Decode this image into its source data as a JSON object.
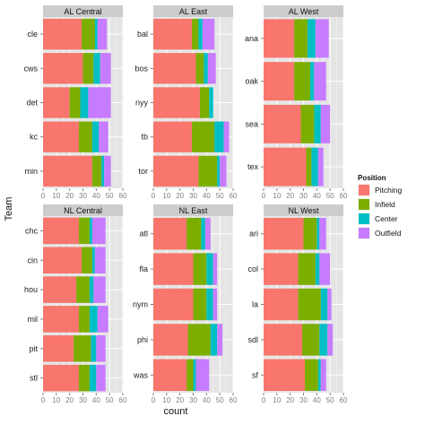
{
  "chart_data": {
    "type": "bar",
    "orientation": "horizontal",
    "stacked": true,
    "xlabel": "count",
    "ylabel": "Team",
    "xlim": [
      0,
      60
    ],
    "xticks": [
      "0",
      "10",
      "20",
      "30",
      "40",
      "50",
      "60"
    ],
    "grid": true,
    "legend": {
      "title": "Position",
      "placement": "right",
      "entries": [
        {
          "name": "Pitching",
          "color": "#F8766D"
        },
        {
          "name": "Infield",
          "color": "#7CAE00"
        },
        {
          "name": "Center",
          "color": "#00BFC4"
        },
        {
          "name": "Outfield",
          "color": "#C77CFF"
        }
      ]
    },
    "panels": [
      {
        "title": "AL Central",
        "teams": [
          {
            "name": "cle",
            "values": [
              29,
              10,
              2,
              7
            ]
          },
          {
            "name": "cws",
            "values": [
              30,
              8,
              5,
              8
            ]
          },
          {
            "name": "det",
            "values": [
              20,
              8,
              6,
              17
            ]
          },
          {
            "name": "kc",
            "values": [
              27,
              10,
              5,
              7
            ]
          },
          {
            "name": "min",
            "values": [
              37,
              7,
              2,
              5
            ]
          }
        ]
      },
      {
        "title": "AL East",
        "teams": [
          {
            "name": "bal",
            "values": [
              29,
              5,
              3,
              9
            ]
          },
          {
            "name": "bos",
            "values": [
              32,
              6,
              3,
              6
            ]
          },
          {
            "name": "nyy",
            "values": [
              35,
              7,
              3,
              0
            ]
          },
          {
            "name": "tb",
            "values": [
              29,
              17,
              7,
              4
            ]
          },
          {
            "name": "tor",
            "values": [
              34,
              14,
              2,
              5
            ]
          }
        ]
      },
      {
        "title": "AL West",
        "teams": [
          {
            "name": "ana",
            "values": [
              23,
              10,
              6,
              10
            ]
          },
          {
            "name": "oak",
            "values": [
              23,
              12,
              3,
              9
            ]
          },
          {
            "name": "sea",
            "values": [
              28,
              10,
              5,
              7
            ]
          },
          {
            "name": "tex",
            "values": [
              32,
              4,
              5,
              4
            ]
          }
        ]
      },
      {
        "title": "NL Central",
        "teams": [
          {
            "name": "chc",
            "values": [
              27,
              8,
              2,
              10
            ]
          },
          {
            "name": "cin",
            "values": [
              29,
              8,
              2,
              8
            ]
          },
          {
            "name": "hou",
            "values": [
              25,
              10,
              3,
              9
            ]
          },
          {
            "name": "mil",
            "values": [
              27,
              8,
              6,
              8
            ]
          },
          {
            "name": "pit",
            "values": [
              23,
              13,
              4,
              7
            ]
          },
          {
            "name": "stl",
            "values": [
              27,
              8,
              5,
              7
            ]
          }
        ]
      },
      {
        "title": "NL East",
        "teams": [
          {
            "name": "atl",
            "values": [
              25,
              11,
              3,
              4
            ]
          },
          {
            "name": "fla",
            "values": [
              30,
              10,
              5,
              3
            ]
          },
          {
            "name": "nym",
            "values": [
              30,
              10,
              5,
              3
            ]
          },
          {
            "name": "phi",
            "values": [
              26,
              17,
              5,
              4
            ]
          },
          {
            "name": "was",
            "values": [
              25,
              5,
              2,
              10
            ]
          }
        ]
      },
      {
        "title": "NL West",
        "teams": [
          {
            "name": "ari",
            "values": [
              30,
              10,
              2,
              5
            ]
          },
          {
            "name": "col",
            "values": [
              26,
              13,
              3,
              8
            ]
          },
          {
            "name": "la",
            "values": [
              26,
              17,
              5,
              3
            ]
          },
          {
            "name": "sdl",
            "values": [
              29,
              13,
              6,
              4
            ]
          },
          {
            "name": "sf",
            "values": [
              31,
              10,
              2,
              4
            ]
          }
        ]
      }
    ]
  }
}
